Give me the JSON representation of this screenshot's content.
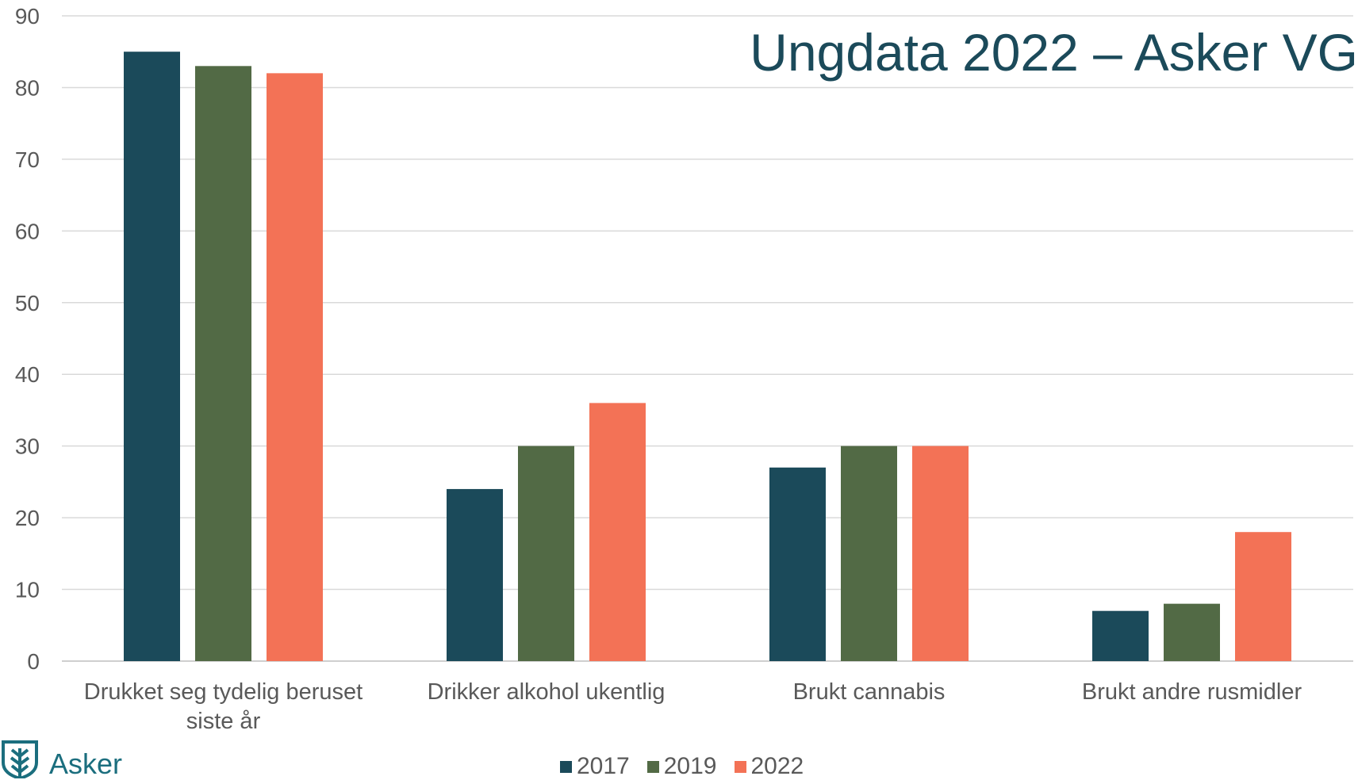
{
  "title": "Ungdata 2022 – Asker VG",
  "logo": {
    "text": "Asker",
    "icon": "asker-coat-of-arms-icon"
  },
  "chart_data": {
    "type": "bar",
    "categories": [
      [
        "Drukket seg tydelig beruset",
        "siste år"
      ],
      [
        "Drikker alkohol ukentlig"
      ],
      [
        "Brukt cannabis"
      ],
      [
        "Brukt andre rusmidler"
      ]
    ],
    "series": [
      {
        "name": "2017",
        "values": [
          85,
          24,
          27,
          7
        ],
        "color": "#1b4a5a"
      },
      {
        "name": "2019",
        "values": [
          83,
          30,
          30,
          8
        ],
        "color": "#526a45"
      },
      {
        "name": "2022",
        "values": [
          82,
          36,
          30,
          18
        ],
        "color": "#f37256"
      }
    ],
    "ylim": [
      0,
      90
    ],
    "yticks": [
      0,
      10,
      20,
      30,
      40,
      50,
      60,
      70,
      80,
      90
    ],
    "grid": true,
    "legend_position": "bottom",
    "colors": {
      "grid": "#d9d9d9",
      "axis": "#bfbfbf",
      "title": "#1b4a5a",
      "logo": "#1b6e7e"
    }
  }
}
